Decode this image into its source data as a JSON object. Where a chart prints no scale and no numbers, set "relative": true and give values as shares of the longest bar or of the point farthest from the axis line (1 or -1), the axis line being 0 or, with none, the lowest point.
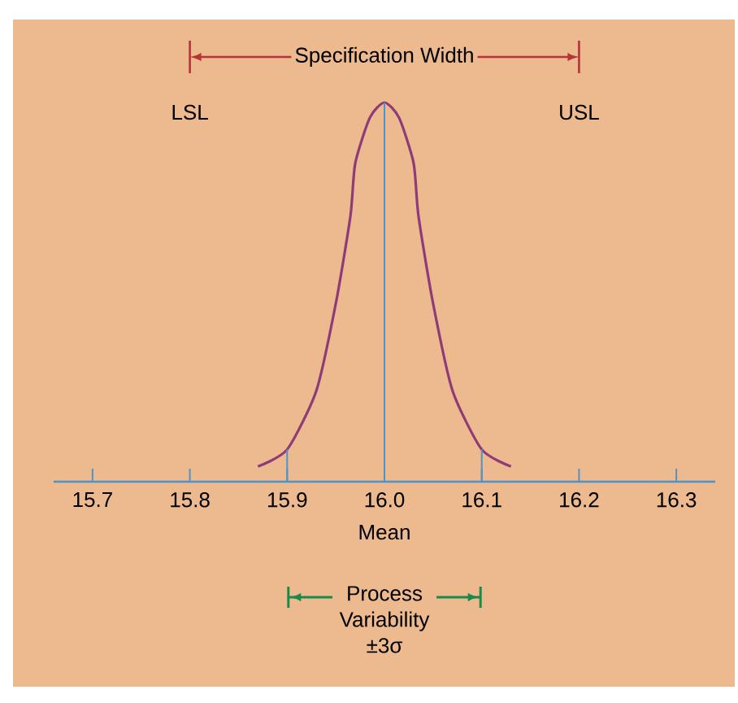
{
  "chart_data": {
    "type": "line",
    "relative": true,
    "x": [
      15.87,
      15.9,
      15.93,
      15.95,
      15.965,
      15.97,
      15.985,
      16.0,
      16.015,
      16.03,
      16.035,
      16.05,
      16.07,
      16.1,
      16.13
    ],
    "series": [
      {
        "color": "#8e3b78",
        "values": [
          0.04,
          0.085,
          0.24,
          0.47,
          0.7,
          0.84,
          0.96,
          1,
          0.96,
          0.84,
          0.7,
          0.47,
          0.24,
          0.085,
          0.04
        ]
      }
    ],
    "xlim": [
      15.66,
      16.34
    ],
    "xticks": [
      {
        "value": 15.7,
        "label": "15.7"
      },
      {
        "value": 15.8,
        "label": "15.8"
      },
      {
        "value": 15.9,
        "label": "15.9"
      },
      {
        "value": 16.0,
        "label": "16.0"
      },
      {
        "value": 16.1,
        "label": "16.1"
      },
      {
        "value": 16.2,
        "label": "16.2"
      },
      {
        "value": 16.3,
        "label": "16.3"
      }
    ],
    "ref_lines": [
      {
        "axis": "x",
        "value": 15.9,
        "color": "#4f93c8"
      },
      {
        "axis": "x",
        "value": 16.0,
        "label": "Mean",
        "color": "#4f93c8"
      },
      {
        "axis": "x",
        "value": 16.1,
        "color": "#4f93c8"
      },
      {
        "axis": "x",
        "value": 15.8,
        "label": "LSL",
        "color": "#b8323c"
      },
      {
        "axis": "x",
        "value": 16.2,
        "label": "USL",
        "color": "#b8323c"
      }
    ],
    "annotations": [
      "Specification Width",
      "Process Variability ±3σ"
    ],
    "grid": false,
    "marker": "none",
    "line_style": "solid"
  }
}
